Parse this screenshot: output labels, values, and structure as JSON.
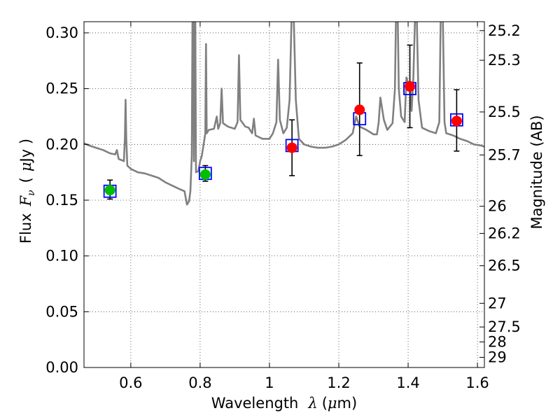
{
  "chart_data": {
    "type": "scatter",
    "xlabel": {
      "text": "Wavelength",
      "symbol": "λ",
      "unit_open": "(",
      "unit_mu": "μ",
      "unit_rest": "m)"
    },
    "ylabel": {
      "text": "Flux",
      "symbol_base": "F",
      "symbol_sub": "ν",
      "unit_open": "(",
      "unit_mu": "μ",
      "unit_rest": "Jy )"
    },
    "y2label": "Magnitude (AB)",
    "xlim": [
      0.465,
      1.62
    ],
    "ylim": [
      0.0,
      0.31
    ],
    "grid": true,
    "x_ticks": [
      {
        "value": 0.6,
        "label": "0.6"
      },
      {
        "value": 0.8,
        "label": "0.8"
      },
      {
        "value": 1.0,
        "label": "1"
      },
      {
        "value": 1.2,
        "label": "1.2"
      },
      {
        "value": 1.4,
        "label": "1.4"
      },
      {
        "value": 1.6,
        "label": "1.6"
      }
    ],
    "y_ticks": [
      {
        "value": 0.0,
        "label": "0.00"
      },
      {
        "value": 0.05,
        "label": "0.05"
      },
      {
        "value": 0.1,
        "label": "0.10"
      },
      {
        "value": 0.15,
        "label": "0.15"
      },
      {
        "value": 0.2,
        "label": "0.20"
      },
      {
        "value": 0.25,
        "label": "0.25"
      },
      {
        "value": 0.3,
        "label": "0.30"
      }
    ],
    "mag_ticks": [
      {
        "mag": 25.2,
        "label": "25.2"
      },
      {
        "mag": 25.3,
        "label": "25.3"
      },
      {
        "mag": 25.5,
        "label": "25.5"
      },
      {
        "mag": 25.7,
        "label": "25.7"
      },
      {
        "mag": 26.0,
        "label": "26"
      },
      {
        "mag": 26.2,
        "label": "26.2"
      },
      {
        "mag": 26.5,
        "label": "26.5"
      },
      {
        "mag": 27.0,
        "label": "27"
      },
      {
        "mag": 27.5,
        "label": "27.5"
      },
      {
        "mag": 28.0,
        "label": "28"
      },
      {
        "mag": 29.0,
        "label": "29"
      }
    ],
    "sed_model": {
      "name": "model spectrum",
      "color": "#808080",
      "points": [
        [
          0.465,
          0.201
        ],
        [
          0.48,
          0.199
        ],
        [
          0.5,
          0.197
        ],
        [
          0.52,
          0.195
        ],
        [
          0.54,
          0.192
        ],
        [
          0.555,
          0.191
        ],
        [
          0.56,
          0.195
        ],
        [
          0.565,
          0.187
        ],
        [
          0.58,
          0.185
        ],
        [
          0.583,
          0.205
        ],
        [
          0.585,
          0.24
        ],
        [
          0.587,
          0.205
        ],
        [
          0.59,
          0.181
        ],
        [
          0.6,
          0.178
        ],
        [
          0.62,
          0.175
        ],
        [
          0.64,
          0.174
        ],
        [
          0.66,
          0.172
        ],
        [
          0.68,
          0.17
        ],
        [
          0.7,
          0.166
        ],
        [
          0.72,
          0.163
        ],
        [
          0.74,
          0.16
        ],
        [
          0.755,
          0.158
        ],
        [
          0.762,
          0.146
        ],
        [
          0.768,
          0.149
        ],
        [
          0.772,
          0.158
        ],
        [
          0.776,
          0.19
        ],
        [
          0.778,
          0.315
        ],
        [
          0.78,
          0.315
        ],
        [
          0.782,
          0.185
        ],
        [
          0.784,
          0.315
        ],
        [
          0.786,
          0.315
        ],
        [
          0.788,
          0.175
        ],
        [
          0.795,
          0.176
        ],
        [
          0.8,
          0.185
        ],
        [
          0.805,
          0.19
        ],
        [
          0.81,
          0.2
        ],
        [
          0.815,
          0.21
        ],
        [
          0.817,
          0.29
        ],
        [
          0.819,
          0.21
        ],
        [
          0.825,
          0.213
        ],
        [
          0.84,
          0.214
        ],
        [
          0.848,
          0.225
        ],
        [
          0.852,
          0.214
        ],
        [
          0.858,
          0.219
        ],
        [
          0.862,
          0.25
        ],
        [
          0.866,
          0.219
        ],
        [
          0.88,
          0.216
        ],
        [
          0.9,
          0.214
        ],
        [
          0.908,
          0.22
        ],
        [
          0.912,
          0.28
        ],
        [
          0.916,
          0.222
        ],
        [
          0.93,
          0.216
        ],
        [
          0.94,
          0.215
        ],
        [
          0.95,
          0.21
        ],
        [
          0.955,
          0.223
        ],
        [
          0.96,
          0.208
        ],
        [
          0.98,
          0.205
        ],
        [
          1.0,
          0.205
        ],
        [
          1.01,
          0.21
        ],
        [
          1.02,
          0.22
        ],
        [
          1.025,
          0.276
        ],
        [
          1.03,
          0.222
        ],
        [
          1.04,
          0.21
        ],
        [
          1.05,
          0.215
        ],
        [
          1.058,
          0.24
        ],
        [
          1.064,
          0.315
        ],
        [
          1.07,
          0.315
        ],
        [
          1.076,
          0.24
        ],
        [
          1.085,
          0.205
        ],
        [
          1.1,
          0.2
        ],
        [
          1.12,
          0.198
        ],
        [
          1.14,
          0.197
        ],
        [
          1.16,
          0.197
        ],
        [
          1.18,
          0.198
        ],
        [
          1.2,
          0.2
        ],
        [
          1.22,
          0.204
        ],
        [
          1.24,
          0.21
        ],
        [
          1.25,
          0.225
        ],
        [
          1.26,
          0.216
        ],
        [
          1.28,
          0.213
        ],
        [
          1.3,
          0.209
        ],
        [
          1.31,
          0.209
        ],
        [
          1.315,
          0.22
        ],
        [
          1.32,
          0.242
        ],
        [
          1.33,
          0.222
        ],
        [
          1.34,
          0.213
        ],
        [
          1.355,
          0.219
        ],
        [
          1.362,
          0.25
        ],
        [
          1.365,
          0.315
        ],
        [
          1.37,
          0.315
        ],
        [
          1.373,
          0.25
        ],
        [
          1.38,
          0.225
        ],
        [
          1.39,
          0.22
        ],
        [
          1.395,
          0.26
        ],
        [
          1.4,
          0.255
        ],
        [
          1.405,
          0.255
        ],
        [
          1.41,
          0.23
        ],
        [
          1.415,
          0.26
        ],
        [
          1.42,
          0.315
        ],
        [
          1.425,
          0.315
        ],
        [
          1.43,
          0.24
        ],
        [
          1.44,
          0.215
        ],
        [
          1.46,
          0.212
        ],
        [
          1.48,
          0.21
        ],
        [
          1.49,
          0.22
        ],
        [
          1.494,
          0.315
        ],
        [
          1.5,
          0.315
        ],
        [
          1.505,
          0.22
        ],
        [
          1.51,
          0.21
        ],
        [
          1.53,
          0.208
        ],
        [
          1.55,
          0.205
        ],
        [
          1.57,
          0.203
        ],
        [
          1.59,
          0.2
        ],
        [
          1.61,
          0.199
        ],
        [
          1.62,
          0.198
        ]
      ]
    },
    "model_photometry": {
      "name": "model bandpass fluxes",
      "marker": "square-open",
      "color": "#0000ff",
      "points": [
        {
          "x": 0.54,
          "y": 0.158
        },
        {
          "x": 0.815,
          "y": 0.174
        },
        {
          "x": 1.065,
          "y": 0.199
        },
        {
          "x": 1.26,
          "y": 0.223
        },
        {
          "x": 1.405,
          "y": 0.25
        },
        {
          "x": 1.54,
          "y": 0.222
        }
      ]
    },
    "observed": {
      "name": "observed photometry",
      "points": [
        {
          "x": 0.54,
          "y": 0.159,
          "yerr_lo": 0.151,
          "yerr_hi": 0.168,
          "color": "#00bf00"
        },
        {
          "x": 0.815,
          "y": 0.173,
          "yerr_lo": 0.167,
          "yerr_hi": 0.181,
          "color": "#00bf00"
        },
        {
          "x": 1.065,
          "y": 0.197,
          "yerr_lo": 0.172,
          "yerr_hi": 0.222,
          "color": "#ff0000"
        },
        {
          "x": 1.26,
          "y": 0.231,
          "yerr_lo": 0.19,
          "yerr_hi": 0.273,
          "color": "#ff0000"
        },
        {
          "x": 1.405,
          "y": 0.252,
          "yerr_lo": 0.215,
          "yerr_hi": 0.289,
          "color": "#ff0000"
        },
        {
          "x": 1.54,
          "y": 0.221,
          "yerr_lo": 0.194,
          "yerr_hi": 0.249,
          "color": "#ff0000"
        }
      ]
    }
  }
}
